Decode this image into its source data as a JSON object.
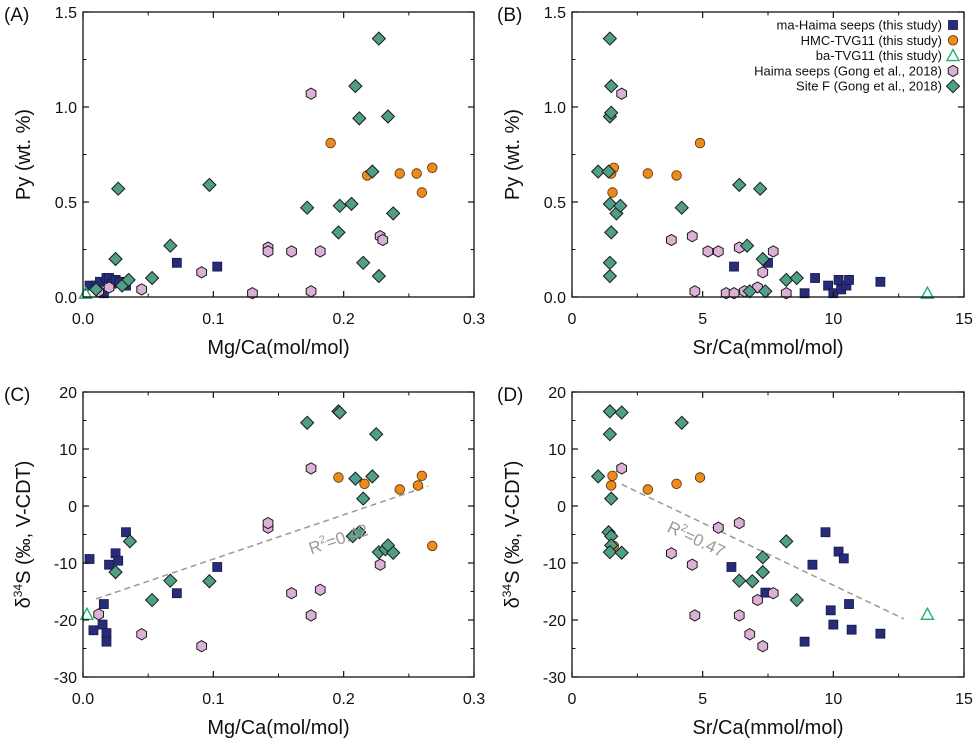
{
  "figure": {
    "legend": {
      "position": "top-right of panel B",
      "entries": [
        {
          "key": "ma",
          "label": "ma-Haima seeps (this study)"
        },
        {
          "key": "hmc",
          "label": "HMC-TVG11 (this study)"
        },
        {
          "key": "ba",
          "label": "ba-TVG11 (this study)"
        },
        {
          "key": "haima",
          "label": "Haima seeps (Gong et al., 2018)"
        },
        {
          "key": "siteF",
          "label": "Site F (Gong et al., 2018)"
        }
      ]
    },
    "colors": {
      "ma": "#262b7b",
      "hmc": "#ec8a1e",
      "ba": "#1fb06a",
      "haima": "#ddb0d8",
      "siteF": "#4f9e88",
      "trend": "#999999"
    }
  },
  "chart_data": [
    {
      "panel": "A",
      "label": "(A)",
      "type": "scatter",
      "xlabel": "Mg/Ca(mol/mol)",
      "ylabel": "Py (wt. %)",
      "xlim": [
        0,
        0.3
      ],
      "ylim": [
        0,
        1.5
      ],
      "xticks": [
        "0.0",
        "0.1",
        "0.2",
        "0.3"
      ],
      "yticks": [
        "0.0",
        "0.5",
        "1.0",
        "1.5"
      ],
      "series": [
        {
          "key": "ma",
          "points": [
            [
              0.005,
              0.06
            ],
            [
              0.01,
              0.06
            ],
            [
              0.013,
              0.08
            ],
            [
              0.016,
              0.02
            ],
            [
              0.018,
              0.1
            ],
            [
              0.02,
              0.1
            ],
            [
              0.022,
              0.07
            ],
            [
              0.025,
              0.09
            ],
            [
              0.028,
              0.08
            ],
            [
              0.033,
              0.06
            ],
            [
              0.072,
              0.18
            ],
            [
              0.103,
              0.16
            ]
          ]
        },
        {
          "key": "hmc",
          "points": [
            [
              0.19,
              0.81
            ],
            [
              0.218,
              0.64
            ],
            [
              0.243,
              0.65
            ],
            [
              0.256,
              0.65
            ],
            [
              0.26,
              0.55
            ],
            [
              0.268,
              0.68
            ]
          ]
        },
        {
          "key": "ba",
          "points": [
            [
              0.002,
              0.02
            ]
          ]
        },
        {
          "key": "haima",
          "points": [
            [
              0.012,
              0.03
            ],
            [
              0.02,
              0.05
            ],
            [
              0.045,
              0.04
            ],
            [
              0.091,
              0.13
            ],
            [
              0.13,
              0.02
            ],
            [
              0.142,
              0.26
            ],
            [
              0.142,
              0.24
            ],
            [
              0.16,
              0.24
            ],
            [
              0.175,
              0.03
            ],
            [
              0.175,
              1.07
            ],
            [
              0.182,
              0.24
            ],
            [
              0.228,
              0.32
            ],
            [
              0.23,
              0.3
            ]
          ]
        },
        {
          "key": "siteF",
          "points": [
            [
              0.01,
              0.04
            ],
            [
              0.025,
              0.2
            ],
            [
              0.027,
              0.57
            ],
            [
              0.03,
              0.06
            ],
            [
              0.035,
              0.09
            ],
            [
              0.053,
              0.1
            ],
            [
              0.067,
              0.27
            ],
            [
              0.097,
              0.59
            ],
            [
              0.172,
              0.47
            ],
            [
              0.196,
              0.34
            ],
            [
              0.197,
              0.48
            ],
            [
              0.206,
              0.49
            ],
            [
              0.209,
              1.11
            ],
            [
              0.212,
              0.94
            ],
            [
              0.215,
              0.18
            ],
            [
              0.222,
              0.66
            ],
            [
              0.227,
              0.11
            ],
            [
              0.227,
              1.36
            ],
            [
              0.234,
              0.95
            ],
            [
              0.238,
              0.44
            ]
          ]
        }
      ]
    },
    {
      "panel": "B",
      "label": "(B)",
      "type": "scatter",
      "xlabel": "Sr/Ca(mmol/mol)",
      "ylabel": "Py (wt. %)",
      "xlim": [
        0,
        15
      ],
      "ylim": [
        0,
        1.5
      ],
      "xticks": [
        "0",
        "5",
        "10",
        "15"
      ],
      "yticks": [
        "0.0",
        "0.5",
        "1.0",
        "1.5"
      ],
      "series": [
        {
          "key": "ma",
          "points": [
            [
              6.2,
              0.16
            ],
            [
              7.5,
              0.18
            ],
            [
              8.9,
              0.02
            ],
            [
              9.3,
              0.1
            ],
            [
              9.8,
              0.06
            ],
            [
              10.0,
              0.02
            ],
            [
              10.2,
              0.09
            ],
            [
              10.3,
              0.04
            ],
            [
              10.5,
              0.06
            ],
            [
              10.6,
              0.09
            ],
            [
              11.8,
              0.08
            ]
          ]
        },
        {
          "key": "hmc",
          "points": [
            [
              1.5,
              0.65
            ],
            [
              1.55,
              0.55
            ],
            [
              1.6,
              0.68
            ],
            [
              2.9,
              0.65
            ],
            [
              4.0,
              0.64
            ],
            [
              4.9,
              0.81
            ]
          ]
        },
        {
          "key": "ba",
          "points": [
            [
              13.6,
              0.02
            ]
          ]
        },
        {
          "key": "haima",
          "points": [
            [
              1.9,
              1.07
            ],
            [
              3.8,
              0.3
            ],
            [
              4.6,
              0.32
            ],
            [
              4.7,
              0.03
            ],
            [
              5.2,
              0.24
            ],
            [
              5.6,
              0.24
            ],
            [
              5.9,
              0.02
            ],
            [
              6.2,
              0.02
            ],
            [
              6.4,
              0.26
            ],
            [
              6.6,
              0.03
            ],
            [
              7.1,
              0.05
            ],
            [
              7.3,
              0.13
            ],
            [
              7.7,
              0.24
            ],
            [
              8.2,
              0.02
            ]
          ]
        },
        {
          "key": "siteF",
          "points": [
            [
              1.0,
              0.66
            ],
            [
              1.4,
              0.66
            ],
            [
              1.45,
              1.36
            ],
            [
              1.45,
              0.95
            ],
            [
              1.5,
              0.97
            ],
            [
              1.5,
              1.11
            ],
            [
              1.45,
              0.49
            ],
            [
              1.5,
              0.34
            ],
            [
              1.45,
              0.18
            ],
            [
              1.45,
              0.11
            ],
            [
              1.7,
              0.44
            ],
            [
              1.85,
              0.48
            ],
            [
              4.2,
              0.47
            ],
            [
              6.4,
              0.59
            ],
            [
              6.7,
              0.27
            ],
            [
              6.8,
              0.03
            ],
            [
              7.2,
              0.57
            ],
            [
              7.3,
              0.2
            ],
            [
              7.4,
              0.03
            ],
            [
              8.2,
              0.09
            ],
            [
              8.6,
              0.1
            ]
          ]
        }
      ]
    },
    {
      "panel": "C",
      "label": "(C)",
      "type": "scatter",
      "xlabel": "Mg/Ca(mol/mol)",
      "ylabel": "δ34S (‰, V-CDT)",
      "ylabel_parts": {
        "delta": "δ",
        "sup": "34",
        "rest": "S (‰, V-CDT)"
      },
      "xlim": [
        0,
        0.3
      ],
      "ylim": [
        -30,
        20
      ],
      "xticks": [
        "0.0",
        "0.1",
        "0.2",
        "0.3"
      ],
      "yticks": [
        "-30",
        "-20",
        "-10",
        "0",
        "10",
        "20"
      ],
      "trend": {
        "x": [
          0.01,
          0.265
        ],
        "y": [
          -16.3,
          3.5
        ],
        "label": "R2=0.42",
        "label_parts": {
          "pre": "R",
          "sup": "2",
          "post": "=0.42"
        },
        "label_at": [
          0.175,
          -8.5
        ]
      },
      "series": [
        {
          "key": "ma",
          "points": [
            [
              0.005,
              -9.3
            ],
            [
              0.008,
              -21.8
            ],
            [
              0.015,
              -20.8
            ],
            [
              0.016,
              -17.2
            ],
            [
              0.018,
              -22.3
            ],
            [
              0.018,
              -23.8
            ],
            [
              0.02,
              -10.3
            ],
            [
              0.025,
              -8.3
            ],
            [
              0.027,
              -9.6
            ],
            [
              0.033,
              -4.6
            ],
            [
              0.072,
              -15.3
            ],
            [
              0.103,
              -10.7
            ]
          ]
        },
        {
          "key": "hmc",
          "points": [
            [
              0.196,
              5.0
            ],
            [
              0.216,
              3.9
            ],
            [
              0.243,
              2.9
            ],
            [
              0.257,
              3.6
            ],
            [
              0.26,
              5.3
            ],
            [
              0.268,
              -7.0
            ]
          ]
        },
        {
          "key": "ba",
          "points": [
            [
              0.003,
              -19.0
            ]
          ]
        },
        {
          "key": "haima",
          "points": [
            [
              0.012,
              -19.0
            ],
            [
              0.045,
              -22.5
            ],
            [
              0.091,
              -24.6
            ],
            [
              0.142,
              -3.8
            ],
            [
              0.142,
              -3.0
            ],
            [
              0.16,
              -15.3
            ],
            [
              0.175,
              -19.2
            ],
            [
              0.175,
              6.6
            ],
            [
              0.182,
              -14.7
            ],
            [
              0.228,
              -10.3
            ]
          ]
        },
        {
          "key": "siteF",
          "points": [
            [
              0.025,
              -11.6
            ],
            [
              0.036,
              -6.2
            ],
            [
              0.053,
              -16.5
            ],
            [
              0.067,
              -13.1
            ],
            [
              0.097,
              -13.2
            ],
            [
              0.172,
              14.6
            ],
            [
              0.196,
              16.6
            ],
            [
              0.197,
              16.4
            ],
            [
              0.207,
              -5.3
            ],
            [
              0.209,
              4.8
            ],
            [
              0.212,
              -4.6
            ],
            [
              0.215,
              1.3
            ],
            [
              0.222,
              5.2
            ],
            [
              0.225,
              12.6
            ],
            [
              0.227,
              -8.1
            ],
            [
              0.232,
              -7.6
            ],
            [
              0.234,
              -6.9
            ],
            [
              0.238,
              -8.2
            ]
          ]
        }
      ]
    },
    {
      "panel": "D",
      "label": "(D)",
      "type": "scatter",
      "xlabel": "Sr/Ca(mmol/mol)",
      "ylabel": "δ34S (‰, V-CDT)",
      "ylabel_parts": {
        "delta": "δ",
        "sup": "34",
        "rest": "S (‰, V-CDT)"
      },
      "xlim": [
        0,
        15
      ],
      "ylim": [
        -30,
        20
      ],
      "xticks": [
        "0",
        "5",
        "10",
        "15"
      ],
      "yticks": [
        "-30",
        "-20",
        "-10",
        "0",
        "10",
        "20"
      ],
      "trend": {
        "x": [
          1.9,
          12.7
        ],
        "y": [
          3.8,
          -19.8
        ],
        "label": "R2=0.47",
        "label_at": [
          3.6,
          -4.4
        ],
        "label_parts": {
          "pre": "R",
          "sup": "2",
          "post": "=0.47"
        }
      },
      "series": [
        {
          "key": "ma",
          "points": [
            [
              6.1,
              -10.7
            ],
            [
              7.4,
              -15.2
            ],
            [
              8.9,
              -23.8
            ],
            [
              9.2,
              -10.3
            ],
            [
              9.7,
              -4.6
            ],
            [
              9.9,
              -18.3
            ],
            [
              10.0,
              -20.8
            ],
            [
              10.2,
              -8.0
            ],
            [
              10.4,
              -9.2
            ],
            [
              10.6,
              -17.2
            ],
            [
              10.7,
              -21.7
            ],
            [
              11.8,
              -22.4
            ]
          ]
        },
        {
          "key": "hmc",
          "points": [
            [
              1.5,
              3.6
            ],
            [
              1.55,
              5.3
            ],
            [
              1.6,
              -7.0
            ],
            [
              2.9,
              2.9
            ],
            [
              4.0,
              3.9
            ],
            [
              4.9,
              5.0
            ]
          ]
        },
        {
          "key": "ba",
          "points": [
            [
              13.6,
              -19.0
            ]
          ]
        },
        {
          "key": "haima",
          "points": [
            [
              1.9,
              6.6
            ],
            [
              3.8,
              -8.3
            ],
            [
              4.6,
              -10.3
            ],
            [
              4.7,
              -19.2
            ],
            [
              5.6,
              -3.8
            ],
            [
              6.4,
              -3.0
            ],
            [
              6.4,
              -19.2
            ],
            [
              6.8,
              -22.5
            ],
            [
              7.1,
              -16.5
            ],
            [
              7.3,
              -24.6
            ],
            [
              7.7,
              -15.3
            ]
          ]
        },
        {
          "key": "siteF",
          "points": [
            [
              1.0,
              5.2
            ],
            [
              1.4,
              -4.6
            ],
            [
              1.45,
              16.6
            ],
            [
              1.45,
              12.6
            ],
            [
              1.5,
              1.3
            ],
            [
              1.5,
              -5.3
            ],
            [
              1.5,
              -6.9
            ],
            [
              1.45,
              -8.1
            ],
            [
              1.9,
              -8.2
            ],
            [
              1.9,
              16.4
            ],
            [
              4.2,
              14.6
            ],
            [
              6.4,
              -13.1
            ],
            [
              6.9,
              -13.2
            ],
            [
              7.3,
              -9.0
            ],
            [
              7.3,
              -11.6
            ],
            [
              8.2,
              -6.2
            ],
            [
              8.6,
              -16.5
            ]
          ]
        }
      ]
    }
  ]
}
